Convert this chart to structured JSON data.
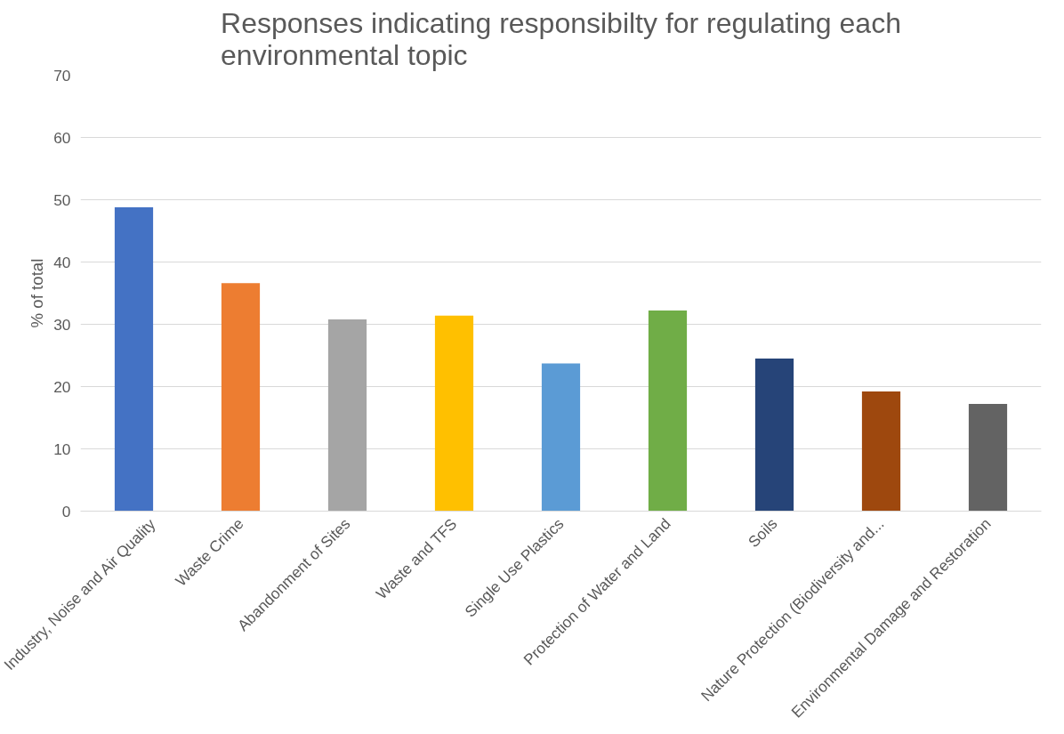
{
  "chart_data": {
    "type": "bar",
    "title": "Responses indicating responsibilty for regulating each\nenvironmental topic",
    "ylabel": "% of total",
    "categories": [
      "Industry, Noise and Air Quality",
      "Waste Crime",
      "Abandonment of Sites",
      "Waste and TFS",
      "Single Use Plastics",
      "Protection of Water and Land",
      "Soils",
      "Nature Protection (Biodiversity and...",
      "Environmental Damage and Restoration"
    ],
    "values": [
      48.8,
      36.6,
      30.8,
      31.4,
      23.7,
      32.2,
      24.5,
      19.2,
      17.2
    ],
    "colors": [
      "#4472c4",
      "#ed7d31",
      "#a5a5a5",
      "#ffc000",
      "#5b9bd5",
      "#70ad47",
      "#264478",
      "#9e480e",
      "#636363"
    ],
    "ylim": [
      0,
      70
    ],
    "yticks": [
      0,
      10,
      20,
      30,
      40,
      50,
      60,
      70
    ],
    "grid": "y"
  }
}
